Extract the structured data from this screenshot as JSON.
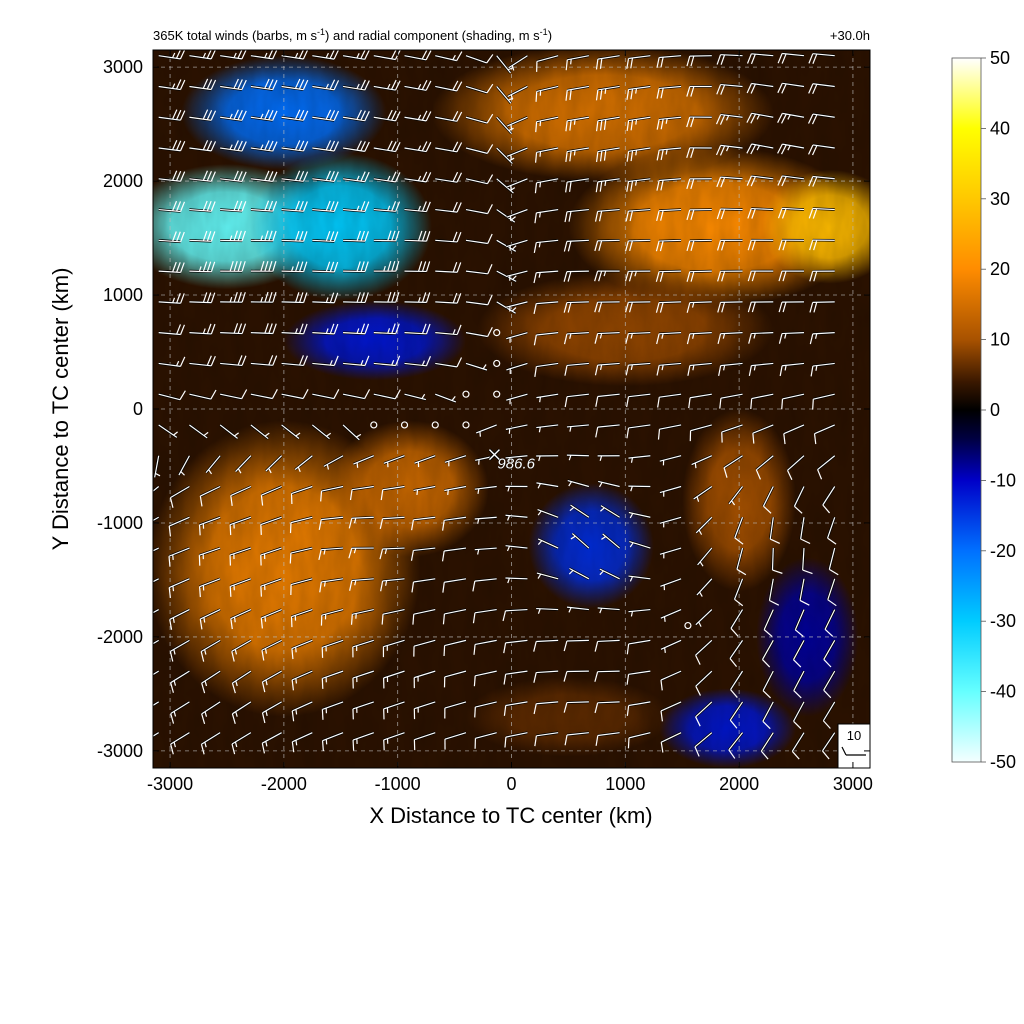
{
  "chart_data": {
    "type": "heatmap",
    "title": "365K total winds (barbs, m s",
    "title_sup1": "-1",
    "title_mid": ") and radial component (shading, m s",
    "title_sup2": "-1",
    "title_end": ")",
    "forecast_hour": "+30.0h",
    "xlabel": "X Distance to TC center (km)",
    "ylabel": "Y Distance to TC center (km)",
    "xlim": [
      -3150,
      3150
    ],
    "ylim": [
      -3150,
      3150
    ],
    "xticks": [
      -3000,
      -2000,
      -1000,
      0,
      1000,
      2000,
      3000
    ],
    "yticks": [
      -3000,
      -2000,
      -1000,
      0,
      1000,
      2000,
      3000
    ],
    "xtick_labels": [
      "-3000",
      "-2000",
      "-1000",
      "0",
      "1000",
      "2000",
      "3000"
    ],
    "ytick_labels": [
      "-3000",
      "-2000",
      "-1000",
      "0",
      "1000",
      "2000",
      "3000"
    ],
    "grid": true,
    "colorbar": {
      "range": [
        -50,
        50
      ],
      "ticks": [
        "50",
        "40",
        "30",
        "20",
        "10",
        "0",
        "-10",
        "-20",
        "-30",
        "-40",
        "-50"
      ],
      "stops": [
        {
          "v": -50,
          "c": "#f4ffff"
        },
        {
          "v": -40,
          "c": "#66ffff"
        },
        {
          "v": -30,
          "c": "#00ccff"
        },
        {
          "v": -20,
          "c": "#0070ff"
        },
        {
          "v": -10,
          "c": "#0000c8"
        },
        {
          "v": -4,
          "c": "#000040"
        },
        {
          "v": 0,
          "c": "#000000"
        },
        {
          "v": 4,
          "c": "#3a1800"
        },
        {
          "v": 10,
          "c": "#a85200"
        },
        {
          "v": 20,
          "c": "#ff8c00"
        },
        {
          "v": 30,
          "c": "#ffc800"
        },
        {
          "v": 40,
          "c": "#ffff00"
        },
        {
          "v": 50,
          "c": "#ffffff"
        }
      ]
    },
    "shading_features": [
      {
        "x": -2500,
        "y": 1600,
        "sx": 900,
        "sy": 550,
        "v": -40
      },
      {
        "x": -1500,
        "y": 1600,
        "sx": 800,
        "sy": 650,
        "v": -30
      },
      {
        "x": -2000,
        "y": 2600,
        "sx": 900,
        "sy": 500,
        "v": -20
      },
      {
        "x": -1200,
        "y": 600,
        "sx": 800,
        "sy": 350,
        "v": -12
      },
      {
        "x": 800,
        "y": 2600,
        "sx": 1500,
        "sy": 600,
        "v": 16
      },
      {
        "x": 1800,
        "y": 1600,
        "sx": 1300,
        "sy": 700,
        "v": 20
      },
      {
        "x": 2800,
        "y": 1600,
        "sx": 600,
        "sy": 500,
        "v": 28
      },
      {
        "x": 1000,
        "y": 700,
        "sx": 1300,
        "sy": 500,
        "v": 9
      },
      {
        "x": -2000,
        "y": -1400,
        "sx": 1200,
        "sy": 1300,
        "v": 18
      },
      {
        "x": -900,
        "y": -700,
        "sx": 700,
        "sy": 600,
        "v": 14
      },
      {
        "x": 700,
        "y": -1200,
        "sx": 550,
        "sy": 550,
        "v": -14
      },
      {
        "x": 1900,
        "y": -2800,
        "sx": 600,
        "sy": 350,
        "v": -12
      },
      {
        "x": 2600,
        "y": -2000,
        "sx": 450,
        "sy": 700,
        "v": -8
      },
      {
        "x": 2000,
        "y": -800,
        "sx": 500,
        "sy": 800,
        "v": 10
      },
      {
        "x": 500,
        "y": -2700,
        "sx": 900,
        "sy": 350,
        "v": 6
      }
    ],
    "wind_barbs": [
      {
        "x": -2400,
        "y": 2400,
        "u": -35,
        "v": 5
      },
      {
        "x": -1200,
        "y": 2400,
        "u": -30,
        "v": 5
      },
      {
        "x": 1000,
        "y": 2400,
        "u": 30,
        "v": 5
      },
      {
        "x": 2400,
        "y": 2400,
        "u": 25,
        "v": -5
      },
      {
        "x": -2400,
        "y": 1200,
        "u": -40,
        "v": 0
      },
      {
        "x": -1200,
        "y": 1200,
        "u": -35,
        "v": 0
      },
      {
        "x": 1000,
        "y": 1200,
        "u": 25,
        "v": 0
      },
      {
        "x": 2400,
        "y": 1200,
        "u": 20,
        "v": 0
      },
      {
        "x": -2400,
        "y": -1200,
        "u": 15,
        "v": 5
      },
      {
        "x": -1200,
        "y": -1200,
        "u": 15,
        "v": 0
      },
      {
        "x": 800,
        "y": -1200,
        "u": 5,
        "v": -5
      },
      {
        "x": 2400,
        "y": -1200,
        "u": 0,
        "v": 10
      },
      {
        "x": -2400,
        "y": -2400,
        "u": 15,
        "v": 10
      },
      {
        "x": -1200,
        "y": -2400,
        "u": 15,
        "v": 5
      },
      {
        "x": 800,
        "y": -2400,
        "u": 10,
        "v": 0
      },
      {
        "x": 2400,
        "y": -2400,
        "u": 5,
        "v": 10
      }
    ],
    "calm_points": [
      {
        "x": 1550,
        "y": -1900
      }
    ],
    "center_marker": {
      "x": -150,
      "y": -400,
      "label": "986.6"
    },
    "reference_barb": {
      "label": "10",
      "u": 10,
      "v": 0
    }
  }
}
